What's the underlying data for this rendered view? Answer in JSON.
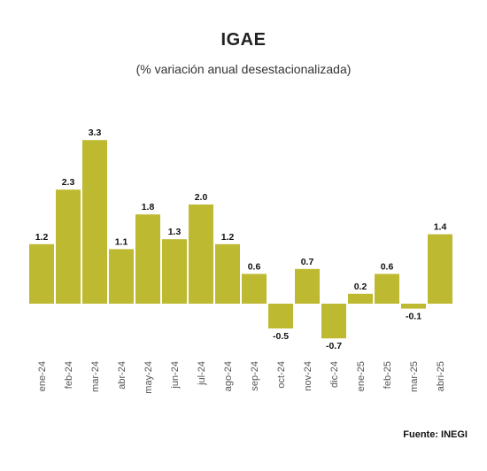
{
  "chart_data": {
    "type": "bar",
    "title": "IGAE",
    "subtitle": "(%  variación anual desestacionalizada)",
    "categories": [
      "ene-24",
      "feb-24",
      "mar-24",
      "abr-24",
      "may-24",
      "jun-24",
      "jul-24",
      "ago-24",
      "sep-24",
      "oct-24",
      "nov-24",
      "dic-24",
      "ene-25",
      "feb-25",
      "mar-25",
      "abri-25"
    ],
    "values": [
      1.2,
      2.3,
      3.3,
      1.1,
      1.8,
      1.3,
      2.0,
      1.2,
      0.6,
      -0.5,
      0.7,
      -0.7,
      0.2,
      0.6,
      -0.1,
      1.4
    ],
    "value_labels": [
      "1.2",
      "2.3",
      "3.3",
      "1.1",
      "1.8",
      "1.3",
      "2.0",
      "1.2",
      "0.6",
      "-0.5",
      "0.7",
      "-0.7",
      "0.2",
      "0.6",
      "-0.1",
      "1.4"
    ],
    "bar_color": "#bdb930",
    "grid": false,
    "legend": "none",
    "source": "Fuente: INEGI"
  }
}
